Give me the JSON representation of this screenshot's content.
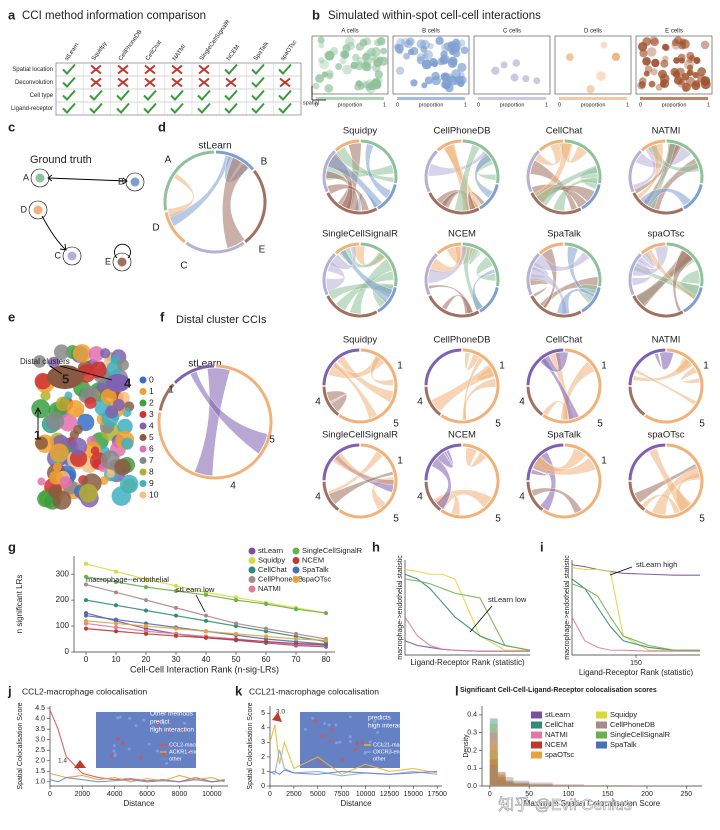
{
  "panels": {
    "a": {
      "label": "a",
      "title": "CCI method information comparison",
      "methods": [
        "stLearn",
        "Squidpy",
        "CellPhoneDB",
        "CellChat",
        "NATMI",
        "SingleCellSignalR",
        "NCEM",
        "SpaTalk",
        "spaOTsc"
      ],
      "rows": [
        "Spatial location",
        "Deconvolution",
        "Cell type",
        "Ligand-receptor"
      ],
      "cells": [
        [
          true,
          false,
          false,
          false,
          false,
          false,
          true,
          true,
          true
        ],
        [
          true,
          false,
          false,
          false,
          false,
          false,
          false,
          true,
          false
        ],
        [
          true,
          true,
          true,
          true,
          true,
          true,
          true,
          true,
          true
        ],
        [
          true,
          true,
          true,
          true,
          true,
          true,
          true,
          true,
          true
        ]
      ]
    },
    "b": {
      "label": "b",
      "title": "Simulated within-spot cell-cell interactions",
      "boxes": [
        "A cells",
        "B cells",
        "C cells",
        "D cells",
        "E cells"
      ],
      "box_colors": [
        "#8fc19a",
        "#7f9fd0",
        "#b7b0d6",
        "#f0b27a",
        "#a0522d"
      ],
      "axis_x": "proportion",
      "axis_y": "spatial",
      "scale_labels": [
        "0",
        "1"
      ]
    },
    "c": {
      "label": "c",
      "title": "Ground truth",
      "nodes": [
        "A",
        "B",
        "C",
        "D",
        "E"
      ]
    },
    "d": {
      "label": "d",
      "main": "stLearn",
      "main_nodes": [
        "A",
        "B",
        "C",
        "D",
        "E"
      ],
      "methods": [
        "Squidpy",
        "CellPhoneDB",
        "CellChat",
        "NATMI",
        "SingleCellSignalR",
        "NCEM",
        "SpaTalk",
        "spaOTsc"
      ]
    },
    "e": {
      "label": "e",
      "annotation": "Distal clusters",
      "map_labels": [
        "5",
        "4",
        "1"
      ],
      "clusters": [
        "0",
        "1",
        "2",
        "3",
        "4",
        "5",
        "6",
        "7",
        "8",
        "9",
        "10"
      ],
      "cluster_colors": [
        "#3a6ec4",
        "#f0a030",
        "#3aa040",
        "#d03030",
        "#8060b0",
        "#8a5a40",
        "#e070b0",
        "#888888",
        "#b0b030",
        "#40b0c0",
        "#f5c080"
      ]
    },
    "f": {
      "label": "f",
      "title": "Distal cluster CCIs",
      "main": "stLearn",
      "main_nodes": [
        "1",
        "5",
        "4"
      ],
      "methods": [
        "Squidpy",
        "CellPhoneDB",
        "CellChat",
        "NATMI",
        "SingleCellSignalR",
        "NCEM",
        "SpaTalk",
        "spaOTsc"
      ],
      "method_nodes": [
        [
          "1",
          "4",
          "5"
        ],
        [
          "1",
          "4",
          "5"
        ],
        [
          "1",
          "4",
          "5"
        ],
        [
          "1",
          "5"
        ],
        [
          "1",
          "4",
          "5"
        ],
        [
          "4",
          "5"
        ],
        [
          "1",
          "4"
        ],
        [
          "5"
        ]
      ]
    }
  },
  "watermark": "知乎 @Evil Genius",
  "chart_data": [
    {
      "type": "line",
      "panel": "g",
      "xlabel": "Cell-Cell Interaction Rank (n-sig-LRs)",
      "ylabel": "n significant LRs",
      "notes": [
        "stLearn low",
        "macrophage--endothelial"
      ],
      "x": [
        0,
        10,
        20,
        30,
        40,
        50,
        60,
        70,
        80
      ],
      "xlim": [
        -4,
        83
      ],
      "xticks": [
        0,
        10,
        20,
        30,
        40,
        50,
        60,
        70,
        80
      ],
      "ylim": [
        0,
        370
      ],
      "yticks": [
        0,
        100,
        200,
        300
      ],
      "series": [
        {
          "name": "stLearn",
          "color": "#7b4f9d",
          "values": [
            150,
            120,
            90,
            70,
            55,
            45,
            35,
            25,
            20
          ]
        },
        {
          "name": "Squidpy",
          "color": "#d9d93a",
          "values": [
            340,
            310,
            280,
            255,
            230,
            210,
            190,
            170,
            150
          ]
        },
        {
          "name": "CellChat",
          "color": "#2e8b7a",
          "values": [
            200,
            180,
            160,
            140,
            120,
            100,
            80,
            60,
            40
          ]
        },
        {
          "name": "CellPhoneDB",
          "color": "#a88a8a",
          "values": [
            260,
            230,
            200,
            170,
            140,
            110,
            90,
            70,
            50
          ]
        },
        {
          "name": "NATMI",
          "color": "#e07aa0",
          "values": [
            110,
            95,
            80,
            70,
            60,
            50,
            40,
            30,
            25
          ]
        },
        {
          "name": "SingleCellSignalR",
          "color": "#6ab04c",
          "values": [
            290,
            270,
            250,
            235,
            220,
            200,
            185,
            165,
            150
          ]
        },
        {
          "name": "NCEM",
          "color": "#c0392b",
          "values": [
            90,
            80,
            70,
            62,
            55,
            48,
            40,
            33,
            28
          ]
        },
        {
          "name": "SpaTalk",
          "color": "#4a6fb5",
          "values": [
            140,
            125,
            110,
            95,
            80,
            65,
            50,
            40,
            30
          ]
        },
        {
          "name": "spaOTsc",
          "color": "#e8a23a",
          "values": [
            120,
            110,
            100,
            90,
            80,
            70,
            60,
            50,
            45
          ]
        }
      ]
    },
    {
      "type": "line",
      "panel": "h",
      "xlabel": "Ligand-Receptor Rank (statistic)",
      "ylabel": "macrophage->endothelial statistic",
      "notes": [
        "stLearn low"
      ],
      "x": [
        0,
        10,
        20,
        30,
        40,
        60,
        80,
        100
      ],
      "xlim": [
        0,
        100
      ],
      "ylim": [
        0,
        1
      ],
      "series": [
        {
          "name": "stLearn",
          "color": "#7b4f9d",
          "values": [
            0.15,
            0.1,
            0.08,
            0.06,
            0.05,
            0.04,
            0.04,
            0.04
          ]
        },
        {
          "name": "Squidpy",
          "color": "#d9d93a",
          "values": [
            0.9,
            0.88,
            0.85,
            0.85,
            0.8,
            0.2,
            0.05,
            0.05
          ]
        },
        {
          "name": "CellChat",
          "color": "#2e8b7a",
          "values": [
            0.85,
            0.8,
            0.7,
            0.55,
            0.4,
            0.2,
            0.1,
            0.05
          ]
        },
        {
          "name": "NATMI",
          "color": "#e07aa0",
          "values": [
            0.4,
            0.2,
            0.1,
            0.06,
            0.05,
            0.04,
            0.04,
            0.04
          ]
        },
        {
          "name": "SingleCellSignalR",
          "color": "#6ab04c",
          "values": [
            0.8,
            0.78,
            0.75,
            0.7,
            0.65,
            0.6,
            0.1,
            0.05
          ]
        }
      ]
    },
    {
      "type": "line",
      "panel": "i",
      "xlabel": "Ligand-Receptor Rank (statistic)",
      "ylabel": "macrophage->endothelial statistic",
      "notes": [
        "stLearn high"
      ],
      "x": [
        0,
        30,
        60,
        90,
        120,
        180,
        240,
        300
      ],
      "xlim": [
        0,
        300
      ],
      "xticks": [
        150
      ],
      "ylim": [
        0,
        1
      ],
      "series": [
        {
          "name": "stLearn",
          "color": "#7b4f9d",
          "values": [
            0.95,
            0.93,
            0.9,
            0.88,
            0.86,
            0.85,
            0.84,
            0.84
          ]
        },
        {
          "name": "Squidpy",
          "color": "#d9d93a",
          "values": [
            0.92,
            0.9,
            0.9,
            0.88,
            0.2,
            0.05,
            0.05,
            0.05
          ]
        },
        {
          "name": "CellChat",
          "color": "#2e8b7a",
          "values": [
            0.8,
            0.7,
            0.5,
            0.3,
            0.15,
            0.08,
            0.05,
            0.05
          ]
        },
        {
          "name": "NATMI",
          "color": "#e07aa0",
          "values": [
            0.4,
            0.15,
            0.08,
            0.05,
            0.05,
            0.04,
            0.04,
            0.04
          ]
        },
        {
          "name": "SingleCellSignalR",
          "color": "#6ab04c",
          "values": [
            0.75,
            0.7,
            0.62,
            0.4,
            0.2,
            0.1,
            0.05,
            0.05
          ]
        }
      ]
    },
    {
      "type": "line",
      "panel": "j",
      "title": "CCL2-macrophage colocalisation",
      "xlabel": "Distance",
      "ylabel": "Spatial Colocalisation Score",
      "notes": [
        "Other methods",
        "predict",
        "high interaction",
        "1.4"
      ],
      "x": [
        0,
        500,
        1000,
        2000,
        3000,
        4000,
        5000,
        6000,
        7000,
        8000,
        9000,
        10000,
        10800
      ],
      "xlim": [
        0,
        11000
      ],
      "xticks": [
        0,
        2000,
        4000,
        6000,
        8000,
        10000
      ],
      "ylim": [
        0.8,
        4.6
      ],
      "yticks": [
        {
          "value": 1,
          "label": "1.0"
        },
        1.5,
        {
          "value": 2,
          "label": "2.0"
        },
        2.5,
        {
          "value": 3,
          "label": "3.0"
        },
        3.5,
        {
          "value": 4,
          "label": "4.0"
        },
        4.5
      ],
      "series": [
        {
          "name": "CCL2-macrophage",
          "color": "#d9534f",
          "values": [
            4.4,
            3.5,
            2.2,
            1.4,
            1.2,
            1.1,
            1.15,
            1.05,
            1.1,
            1.0,
            1.2,
            1.0,
            1.1
          ]
        },
        {
          "name": "ACKR1-endothelial",
          "color": "#e8a23a",
          "values": [
            1.4,
            1.3,
            1.2,
            1.3,
            1.1,
            1.2,
            1.0,
            1.15,
            1.05,
            1.3,
            1.1,
            1.2,
            1.0
          ]
        },
        {
          "name": "other",
          "color": "#6a8fc7",
          "values": [
            1.1,
            1.0,
            1.2,
            1.1,
            1.0,
            1.05,
            1.1,
            1.0,
            1.05,
            1.0,
            1.1,
            1.0,
            1.05
          ]
        }
      ]
    },
    {
      "type": "line",
      "panel": "k",
      "title": "CCL21-macrophage colocalisation",
      "xlabel": "Distance",
      "ylabel": "Spatial Colocalisation Score",
      "notes": [
        "stLearn",
        "predicts",
        "high interaction",
        "3.0"
      ],
      "x": [
        0,
        500,
        1000,
        1500,
        2500,
        5000,
        7500,
        10000,
        12500,
        15000,
        17500
      ],
      "xlim": [
        0,
        18000
      ],
      "xticks": [
        0,
        2500,
        5000,
        7500,
        10000,
        12500,
        15000,
        17500
      ],
      "ylim": [
        0,
        5.5
      ],
      "yticks": [
        0,
        1,
        2,
        3,
        4,
        5
      ],
      "series": [
        {
          "name": "CCL21-macrophage",
          "color": "#e8b83a",
          "values": [
            3.0,
            4.2,
            1.5,
            3.0,
            1.2,
            2.0,
            0.8,
            1.5,
            1.0,
            1.2,
            0.9
          ]
        },
        {
          "name": "CXCR3-endothelial",
          "color": "#7fb0d8",
          "values": [
            1.0,
            0.8,
            2.5,
            1.2,
            0.9,
            1.0,
            0.7,
            0.9,
            0.8,
            1.0,
            0.8
          ]
        },
        {
          "name": "other",
          "color": "#6a7fc7",
          "values": [
            0.9,
            1.0,
            0.8,
            1.1,
            0.9,
            0.8,
            1.0,
            0.9,
            0.8,
            0.9,
            1.0
          ]
        }
      ]
    },
    {
      "type": "histogram",
      "panel": "l",
      "title": "Significant Cell-Cell-Ligand-Receptor colocalisation scores",
      "xlabel": "Maximum Spatial Colocalisation Score",
      "ylabel": "Density",
      "bins": [
        0,
        10,
        20,
        30,
        50,
        80,
        120,
        180,
        250
      ],
      "xlim": [
        -10,
        270
      ],
      "xticks": [
        0,
        50,
        100,
        150,
        200,
        250
      ],
      "ylim": [
        0,
        0.45
      ],
      "yticks": [
        {
          "value": 0,
          "label": "0.0"
        },
        0.1,
        0.2,
        0.3,
        0.4
      ],
      "series": [
        {
          "name": "stLearn",
          "color": "#7b4f9d",
          "values": [
            0.02,
            0.05,
            0.03,
            0.02,
            0.01,
            0.005,
            0.002,
            0.001
          ]
        },
        {
          "name": "Squidpy",
          "color": "#d9d93a",
          "values": [
            0.35,
            0.08,
            0.02,
            0.01,
            0.005,
            0.002,
            0.001,
            0
          ]
        },
        {
          "name": "CellChat",
          "color": "#2e8b7a",
          "values": [
            0.38,
            0.06,
            0.02,
            0.01,
            0.004,
            0.002,
            0,
            0
          ]
        },
        {
          "name": "CellPhoneDB",
          "color": "#a88a8a",
          "values": [
            0.1,
            0.08,
            0.05,
            0.03,
            0.02,
            0.01,
            0.005,
            0.002
          ]
        },
        {
          "name": "NATMI",
          "color": "#e07aa0",
          "values": [
            0.3,
            0.07,
            0.02,
            0.01,
            0.004,
            0.002,
            0,
            0
          ]
        },
        {
          "name": "SingleCellSignalR",
          "color": "#6ab04c",
          "values": [
            0.2,
            0.06,
            0.03,
            0.015,
            0.008,
            0.003,
            0.001,
            0
          ]
        },
        {
          "name": "NCEM",
          "color": "#c0392b",
          "values": [
            0.15,
            0.05,
            0.02,
            0.01,
            0.005,
            0.002,
            0,
            0
          ]
        },
        {
          "name": "SpaTalk",
          "color": "#4a6fb5",
          "values": [
            0.12,
            0.04,
            0.02,
            0.01,
            0.004,
            0.001,
            0,
            0
          ]
        },
        {
          "name": "spaOTsc",
          "color": "#e8a23a",
          "values": [
            0.25,
            0.06,
            0.02,
            0.01,
            0.004,
            0.002,
            0,
            0
          ]
        }
      ]
    }
  ]
}
